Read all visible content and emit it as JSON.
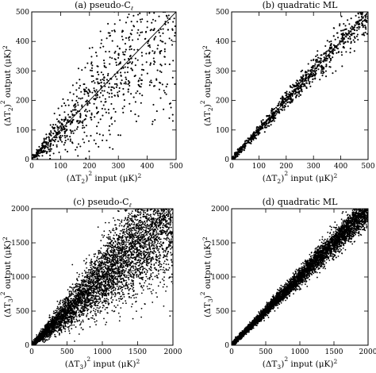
{
  "chart_data": [
    {
      "type": "scatter",
      "title": "(a) pseudo-C",
      "title_sub": "ℓ",
      "xlabel": {
        "prefix": "(ΔT",
        "sub": "2",
        "mid": ")",
        "sup": "2",
        "rest": " input  (μK)",
        "sup2": "2"
      },
      "ylabel": {
        "prefix": "(ΔT",
        "sub": "2",
        "mid": ")",
        "sup": "2",
        "rest": " output  (μK)",
        "sup2": "2"
      },
      "xlim": [
        0,
        500
      ],
      "ylim": [
        0,
        500
      ],
      "xticks": [
        0,
        100,
        200,
        300,
        400,
        500
      ],
      "yticks": [
        0,
        100,
        200,
        300,
        400,
        500
      ],
      "x_ticklabels": [
        "0",
        "100",
        "200",
        "300",
        "400",
        "500"
      ],
      "y_ticklabels": [
        "0",
        "100",
        "200",
        "300",
        "400",
        "500"
      ],
      "reference_line": "y = x",
      "n_points": 900,
      "scatter_relative_width": 0.36,
      "grid": false
    },
    {
      "type": "scatter",
      "title": "(b) quadratic ML",
      "title_sub": "",
      "xlabel": {
        "prefix": "(ΔT",
        "sub": "2",
        "mid": ")",
        "sup": "2",
        "rest": " input  (μK)",
        "sup2": "2"
      },
      "ylabel": {
        "prefix": "(ΔT",
        "sub": "2",
        "mid": ")",
        "sup": "2",
        "rest": " output  (μK)",
        "sup2": "2"
      },
      "xlim": [
        0,
        500
      ],
      "ylim": [
        0,
        500
      ],
      "xticks": [
        0,
        100,
        200,
        300,
        400,
        500
      ],
      "yticks": [
        0,
        100,
        200,
        300,
        400,
        500
      ],
      "x_ticklabels": [
        "0",
        "100",
        "200",
        "300",
        "400",
        "500"
      ],
      "y_ticklabels": [
        "0",
        "100",
        "200",
        "300",
        "400",
        "500"
      ],
      "reference_line": "y = x",
      "n_points": 900,
      "scatter_relative_width": 0.07,
      "grid": false
    },
    {
      "type": "scatter",
      "title": "(c) pseudo-C",
      "title_sub": "ℓ",
      "xlabel": {
        "prefix": "(ΔT",
        "sub": "3",
        "mid": ")",
        "sup": "2",
        "rest": " input  (μK)",
        "sup2": "2"
      },
      "ylabel": {
        "prefix": "(ΔT",
        "sub": "3",
        "mid": ")",
        "sup": "2",
        "rest": " output  (μK)",
        "sup2": "2"
      },
      "xlim": [
        0,
        2000
      ],
      "ylim": [
        0,
        2000
      ],
      "xticks": [
        0,
        500,
        1000,
        1500,
        2000
      ],
      "yticks": [
        0,
        500,
        1000,
        1500,
        2000
      ],
      "x_ticklabels": [
        "0",
        "500",
        "1000",
        "1500",
        "2000"
      ],
      "y_ticklabels": [
        "0",
        "500",
        "1000",
        "1500",
        "2000"
      ],
      "reference_line": "y = x",
      "n_points": 5000,
      "scatter_relative_width": 0.24,
      "grid": false
    },
    {
      "type": "scatter",
      "title": "(d) quadratic ML",
      "title_sub": "",
      "xlabel": {
        "prefix": "(ΔT",
        "sub": "3",
        "mid": ")",
        "sup": "2",
        "rest": " input  (μK)",
        "sup2": "2"
      },
      "ylabel": {
        "prefix": "(ΔT",
        "sub": "3",
        "mid": ")",
        "sup": "2",
        "rest": " output  (μK)",
        "sup2": "2"
      },
      "xlim": [
        0,
        2000
      ],
      "ylim": [
        0,
        2000
      ],
      "xticks": [
        0,
        500,
        1000,
        1500,
        2000
      ],
      "yticks": [
        0,
        500,
        1000,
        1500,
        2000
      ],
      "x_ticklabels": [
        "0",
        "500",
        "1000",
        "1500",
        "2000"
      ],
      "y_ticklabels": [
        "0",
        "500",
        "1000",
        "1500",
        "2000"
      ],
      "reference_line": "y = x",
      "n_points": 5000,
      "scatter_relative_width": 0.06,
      "grid": false
    }
  ],
  "colors": {
    "background": "#ffffff",
    "ink": "#000000"
  }
}
